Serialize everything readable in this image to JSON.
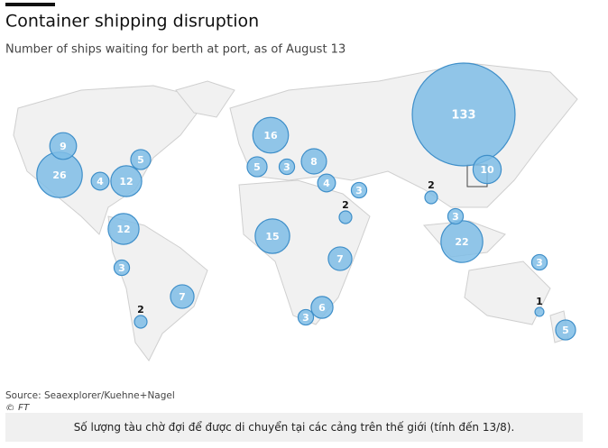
{
  "chart_data": {
    "type": "bubble-map",
    "title": "Container shipping disruption",
    "subtitle": "Number of ships waiting for berth at port, as of August 13",
    "source": "Source: Seaexplorer/Kuehne+Nagel",
    "credit": "© FT",
    "color": "#7fbde6",
    "values": [
      9,
      26,
      4,
      12,
      5,
      12,
      3,
      2,
      7,
      16,
      5,
      3,
      8,
      4,
      3,
      2,
      15,
      7,
      6,
      3,
      133,
      10,
      2,
      3,
      22,
      3,
      1,
      5
    ]
  },
  "caption": "Số lượng tàu chờ đợi để được di chuyển tại các cảng trên thế giới (tính đến 13/8)."
}
